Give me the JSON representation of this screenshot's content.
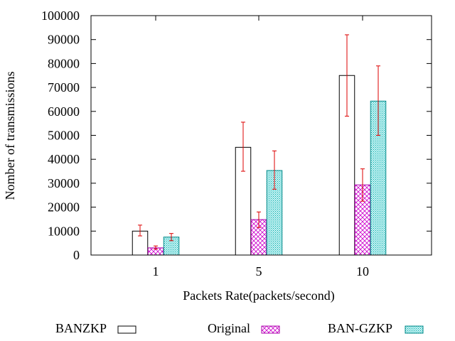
{
  "chart_data": {
    "type": "bar",
    "title": "",
    "xlabel": "Packets Rate(packets/second)",
    "ylabel": "Nomber of transmissions",
    "categories": [
      "1",
      "5",
      "10"
    ],
    "ylim": [
      0,
      100000
    ],
    "yticks": [
      0,
      10000,
      20000,
      30000,
      40000,
      50000,
      60000,
      70000,
      80000,
      90000,
      100000
    ],
    "grid": false,
    "legend_position": "bottom",
    "series": [
      {
        "name": "BANZKP",
        "pattern": "empty",
        "fill_color": "#ffffff",
        "stroke_color": "#000000",
        "values": [
          10000,
          45000,
          75000
        ],
        "error_low": [
          8000,
          35000,
          58000
        ],
        "error_high": [
          12500,
          55500,
          92000
        ]
      },
      {
        "name": "Original",
        "pattern": "crosshatch",
        "fill_color": "#cc00cc",
        "stroke_color": "#aa00aa",
        "values": [
          3000,
          14800,
          29300
        ],
        "error_low": [
          2500,
          11500,
          22500
        ],
        "error_high": [
          3800,
          18000,
          36000
        ]
      },
      {
        "name": "BAN-GZKP",
        "pattern": "dots",
        "fill_color": "#00bbbb",
        "stroke_color": "#008888",
        "values": [
          7500,
          35300,
          64300
        ],
        "error_low": [
          6000,
          27500,
          50000
        ],
        "error_high": [
          9000,
          43500,
          79000
        ]
      }
    ],
    "error_bar_color": "#dd0000"
  }
}
